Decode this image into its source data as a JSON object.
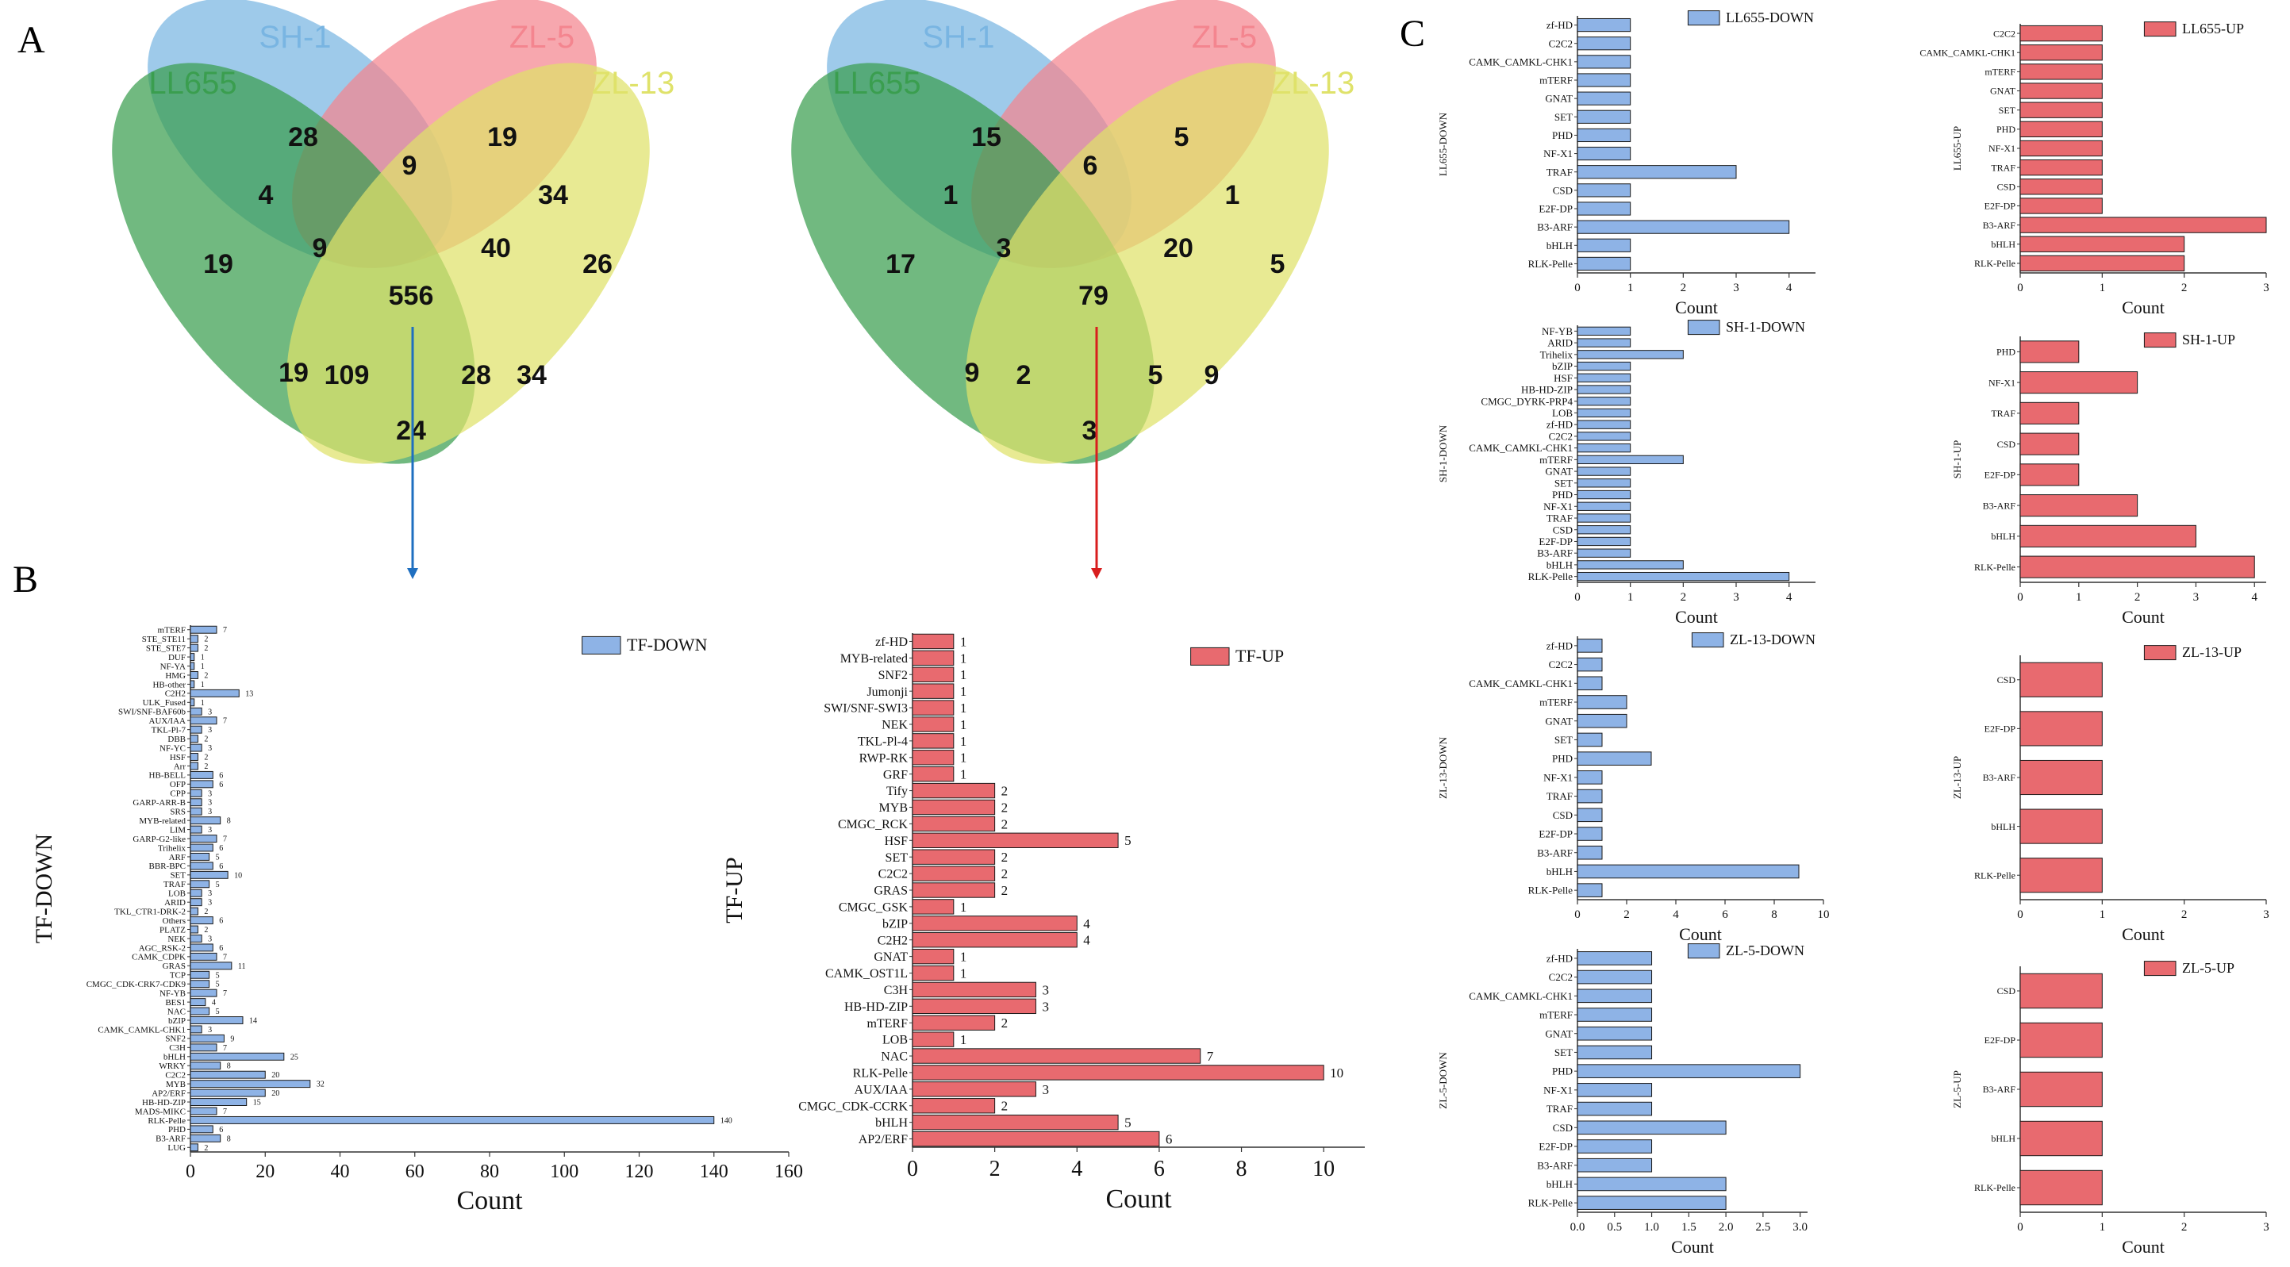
{
  "panel_labels": {
    "a": "A",
    "b": "B",
    "c": "C"
  },
  "colors": {
    "SH-1": "#79b5e2",
    "ZL-5": "#f4858f",
    "LL655": "#3a9e4f",
    "ZL-13": "#dfe26a",
    "down_bar": "#8eb3e6",
    "up_bar": "#e86a6f",
    "down_arrow": "#1f6fc0",
    "up_arrow": "#d81e1e"
  },
  "chart_data": [
    {
      "type": "venn",
      "sets": [
        "SH-1",
        "ZL-5",
        "LL655",
        "ZL-13"
      ],
      "regions": {
        "SH1_only": 28,
        "ZL5_only": 19,
        "LL655_only": 19,
        "ZL13_only": 26,
        "LL655_SH1": 4,
        "SH1_ZL5": 9,
        "ZL5_ZL13": 34,
        "LL655_SH1_ZL5": 9,
        "SH1_ZL5_ZL13": 40,
        "all": 556,
        "LL655_ZL5": 19,
        "LL655_ZL5_ZL13": 109,
        "SH1_ZL13": 34,
        "LL655_SH1_ZL13": 28,
        "LL655_ZL13": 24
      }
    },
    {
      "type": "venn",
      "sets": [
        "SH-1",
        "ZL-5",
        "LL655",
        "ZL-13"
      ],
      "regions": {
        "SH1_only": 15,
        "ZL5_only": 5,
        "LL655_only": 17,
        "ZL13_only": 5,
        "LL655_SH1": 1,
        "SH1_ZL5": 6,
        "ZL5_ZL13": 1,
        "LL655_SH1_ZL5": 3,
        "SH1_ZL5_ZL13": 20,
        "all": 79,
        "LL655_ZL5": 9,
        "LL655_ZL5_ZL13": 2,
        "SH1_ZL13": 9,
        "LL655_SH1_ZL13": 5,
        "LL655_ZL13": 3
      }
    },
    {
      "type": "bar",
      "orientation": "horizontal",
      "legend": "TF-DOWN",
      "ylabel": "TF-DOWN",
      "xlabel": "Count",
      "xlim": [
        0,
        160
      ],
      "xticks": [
        "0",
        "20",
        "40",
        "60",
        "80",
        "100",
        "120",
        "140",
        "160"
      ],
      "categories": [
        "mTERF",
        "STE_STE11",
        "STE_STE7",
        "DUF",
        "NF-YA",
        "HMG",
        "HB-other",
        "C2H2",
        "ULK_Fused",
        "SWI/SNF-BAF60b",
        "AUX/IAA",
        "TKL-Pl-7",
        "DBB",
        "NF-YC",
        "HSF",
        "Arr",
        "HB-BELL",
        "OFP",
        "CPP",
        "GARP-ARR-B",
        "SRS",
        "MYB-related",
        "LIM",
        "GARP-G2-like",
        "Trihelix",
        "ARF",
        "BBR-BPC",
        "SET",
        "TRAF",
        "LOB",
        "ARID",
        "TKL_CTR1-DRK-2",
        "Others",
        "PLATZ",
        "NEK",
        "AGC_RSK-2",
        "CAMK_CDPK",
        "GRAS",
        "TCP",
        "CMGC_CDK-CRK7-CDK9",
        "NF-YB",
        "BES1",
        "NAC",
        "bZIP",
        "CAMK_CAMKL-CHK1",
        "SNF2",
        "C3H",
        "bHLH",
        "WRKY",
        "C2C2",
        "MYB",
        "AP2/ERF",
        "HB-HD-ZIP",
        "MADS-MIKC",
        "RLK-Pelle",
        "PHD",
        "B3-ARF",
        "LUG"
      ],
      "values": [
        7,
        2,
        2,
        1,
        1,
        2,
        1,
        13,
        1,
        3,
        7,
        3,
        2,
        3,
        2,
        2,
        6,
        6,
        3,
        3,
        3,
        8,
        3,
        7,
        6,
        5,
        6,
        10,
        5,
        3,
        3,
        2,
        6,
        2,
        3,
        6,
        7,
        11,
        5,
        5,
        7,
        4,
        5,
        14,
        3,
        9,
        7,
        25,
        8,
        20,
        32,
        20,
        15,
        7,
        140,
        6,
        8,
        2
      ]
    },
    {
      "type": "bar",
      "orientation": "horizontal",
      "legend": "TF-UP",
      "ylabel": "TF-UP",
      "xlabel": "Count",
      "xlim": [
        0,
        11
      ],
      "xticks": [
        "0",
        "2",
        "4",
        "6",
        "8",
        "10"
      ],
      "categories": [
        "zf-HD",
        "MYB-related",
        "SNF2",
        "Jumonji",
        "SWI/SNF-SWI3",
        "NEK",
        "TKL-Pl-4",
        "RWP-RK",
        "GRF",
        "Tify",
        "MYB",
        "CMGC_RCK",
        "HSF",
        "SET",
        "C2C2",
        "GRAS",
        "CMGC_GSK",
        "bZIP",
        "C2H2",
        "GNAT",
        "CAMK_OST1L",
        "C3H",
        "HB-HD-ZIP",
        "mTERF",
        "LOB",
        "NAC",
        "RLK-Pelle",
        "AUX/IAA",
        "CMGC_CDK-CCRK",
        "bHLH",
        "AP2/ERF"
      ],
      "values": [
        1,
        1,
        1,
        1,
        1,
        1,
        1,
        1,
        1,
        2,
        2,
        2,
        5,
        2,
        2,
        2,
        1,
        4,
        4,
        1,
        1,
        3,
        3,
        2,
        1,
        7,
        10,
        3,
        2,
        5,
        6
      ]
    },
    {
      "type": "bar",
      "orientation": "horizontal",
      "legend": "LL655-DOWN",
      "ylabel": "LL655-DOWN",
      "xlabel": "Count",
      "xlim": [
        0,
        4.5
      ],
      "xticks": [
        "0",
        "1",
        "2",
        "3",
        "4"
      ],
      "categories": [
        "zf-HD",
        "C2C2",
        "CAMK_CAMKL-CHK1",
        "mTERF",
        "GNAT",
        "SET",
        "PHD",
        "NF-X1",
        "TRAF",
        "CSD",
        "E2F-DP",
        "B3-ARF",
        "bHLH",
        "RLK-Pelle"
      ],
      "values": [
        1,
        1,
        1,
        1,
        1,
        1,
        1,
        1,
        3,
        1,
        1,
        4,
        1,
        1
      ]
    },
    {
      "type": "bar",
      "orientation": "horizontal",
      "legend": "LL655-UP",
      "ylabel": "LL655-UP",
      "xlabel": "Count",
      "xlim": [
        0,
        3
      ],
      "xticks": [
        "0",
        "1",
        "2",
        "3"
      ],
      "categories": [
        "C2C2",
        "CAMK_CAMKL-CHK1",
        "mTERF",
        "GNAT",
        "SET",
        "PHD",
        "NF-X1",
        "TRAF",
        "CSD",
        "E2F-DP",
        "B3-ARF",
        "bHLH",
        "RLK-Pelle"
      ],
      "values": [
        1,
        1,
        1,
        1,
        1,
        1,
        1,
        1,
        1,
        1,
        3,
        2,
        2
      ]
    },
    {
      "type": "bar",
      "orientation": "horizontal",
      "legend": "SH-1-DOWN",
      "ylabel": "SH-1-DOWN",
      "xlabel": "Count",
      "xlim": [
        0,
        4.5
      ],
      "xticks": [
        "0",
        "1",
        "2",
        "3",
        "4"
      ],
      "categories": [
        "NF-YB",
        "ARID",
        "Trihelix",
        "bZIP",
        "HSF",
        "HB-HD-ZIP",
        "CMGC_DYRK-PRP4",
        "LOB",
        "zf-HD",
        "C2C2",
        "CAMK_CAMKL-CHK1",
        "mTERF",
        "GNAT",
        "SET",
        "PHD",
        "NF-X1",
        "TRAF",
        "CSD",
        "E2F-DP",
        "B3-ARF",
        "bHLH",
        "RLK-Pelle"
      ],
      "values": [
        1,
        1,
        2,
        1,
        1,
        1,
        1,
        1,
        1,
        1,
        1,
        2,
        1,
        1,
        1,
        1,
        1,
        1,
        1,
        1,
        2,
        4
      ]
    },
    {
      "type": "bar",
      "orientation": "horizontal",
      "legend": "SH-1-UP",
      "ylabel": "SH-1-UP",
      "xlabel": "Count",
      "xlim": [
        0,
        4.2
      ],
      "xticks": [
        "0",
        "1",
        "2",
        "3",
        "4"
      ],
      "categories": [
        "PHD",
        "NF-X1",
        "TRAF",
        "CSD",
        "E2F-DP",
        "B3-ARF",
        "bHLH",
        "RLK-Pelle"
      ],
      "values": [
        1,
        2,
        1,
        1,
        1,
        2,
        3,
        4
      ]
    },
    {
      "type": "bar",
      "orientation": "horizontal",
      "legend": "ZL-13-DOWN",
      "ylabel": "ZL-13-DOWN",
      "xlabel": "Count",
      "xlim": [
        0,
        10
      ],
      "xticks": [
        "0",
        "2",
        "4",
        "6",
        "8",
        "10"
      ],
      "categories": [
        "zf-HD",
        "C2C2",
        "CAMK_CAMKL-CHK1",
        "mTERF",
        "GNAT",
        "SET",
        "PHD",
        "NF-X1",
        "TRAF",
        "CSD",
        "E2F-DP",
        "B3-ARF",
        "bHLH",
        "RLK-Pelle"
      ],
      "values": [
        1,
        1,
        1,
        2,
        2,
        1,
        3,
        1,
        1,
        1,
        1,
        1,
        9,
        1
      ]
    },
    {
      "type": "bar",
      "orientation": "horizontal",
      "legend": "ZL-13-UP",
      "ylabel": "ZL-13-UP",
      "xlabel": "Count",
      "xlim": [
        0,
        3
      ],
      "xticks": [
        "0",
        "1",
        "2",
        "3"
      ],
      "categories": [
        "CSD",
        "E2F-DP",
        "B3-ARF",
        "bHLH",
        "RLK-Pelle"
      ],
      "values": [
        1,
        1,
        1,
        1,
        1
      ]
    },
    {
      "type": "bar",
      "orientation": "horizontal",
      "legend": "ZL-5-DOWN",
      "ylabel": "ZL-5-DOWN",
      "xlabel": "Count",
      "xlim": [
        0,
        3.1
      ],
      "xticks": [
        "0.0",
        "0.5",
        "1.0",
        "1.5",
        "2.0",
        "2.5",
        "3.0"
      ],
      "categories": [
        "zf-HD",
        "C2C2",
        "CAMK_CAMKL-CHK1",
        "mTERF",
        "GNAT",
        "SET",
        "PHD",
        "NF-X1",
        "TRAF",
        "CSD",
        "E2F-DP",
        "B3-ARF",
        "bHLH",
        "RLK-Pelle"
      ],
      "values": [
        1,
        1,
        1,
        1,
        1,
        1,
        3,
        1,
        1,
        2,
        1,
        1,
        2,
        2
      ]
    },
    {
      "type": "bar",
      "orientation": "horizontal",
      "legend": "ZL-5-UP",
      "ylabel": "ZL-5-UP",
      "xlabel": "Count",
      "xlim": [
        0,
        3
      ],
      "xticks": [
        "0",
        "1",
        "2",
        "3"
      ],
      "categories": [
        "CSD",
        "E2F-DP",
        "B3-ARF",
        "bHLH",
        "RLK-Pelle"
      ],
      "values": [
        1,
        1,
        1,
        1,
        1
      ]
    }
  ]
}
